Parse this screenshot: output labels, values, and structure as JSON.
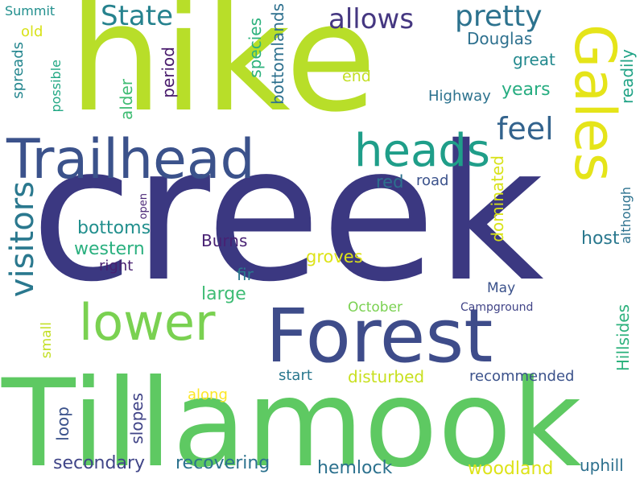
{
  "words": {
    "creek": "creek",
    "hike": "hike",
    "tillamook": "Tillamook",
    "forest": "Forest",
    "trailhead": "Trailhead",
    "gales": "Gales",
    "lower": "lower",
    "heads": "heads",
    "visitors": "visitors",
    "pretty": "pretty",
    "allows": "allows",
    "state": "State",
    "feel": "feel",
    "douglas": "Douglas",
    "great": "great",
    "years": "years",
    "readily": "readily",
    "species": "species",
    "bottomlands": "bottomlands",
    "period": "period",
    "alder": "alder",
    "possible": "possible",
    "spreads": "spreads",
    "summit": "Summit",
    "old": "old",
    "end": "end",
    "highway": "Highway",
    "red": "red",
    "road": "road",
    "dominated": "dominated",
    "although": "although",
    "open": "open",
    "bottoms": "bottoms",
    "western": "western",
    "right": "right",
    "burns": "Burns",
    "groves": "groves",
    "fir": "fir",
    "large": "large",
    "host": "host",
    "may": "May",
    "october": "October",
    "campground": "Campground",
    "hillsides": "Hillsides",
    "small": "small",
    "start": "start",
    "disturbed": "disturbed",
    "recommended": "recommended",
    "along": "along",
    "slopes": "slopes",
    "loop": "loop",
    "secondary": "secondary",
    "recovering": "recovering",
    "hemlock": "hemlock",
    "woodland": "woodland",
    "uphill": "uphill"
  },
  "colors": {
    "dark_purple": "#440154",
    "indigo": "#482878",
    "violet": "#3e4989",
    "slate": "#31688e",
    "teal": "#26828e",
    "green_teal": "#1f9e89",
    "green": "#35b779",
    "light_green": "#6ece58",
    "lime": "#b5de2b",
    "yellow": "#fde725"
  }
}
